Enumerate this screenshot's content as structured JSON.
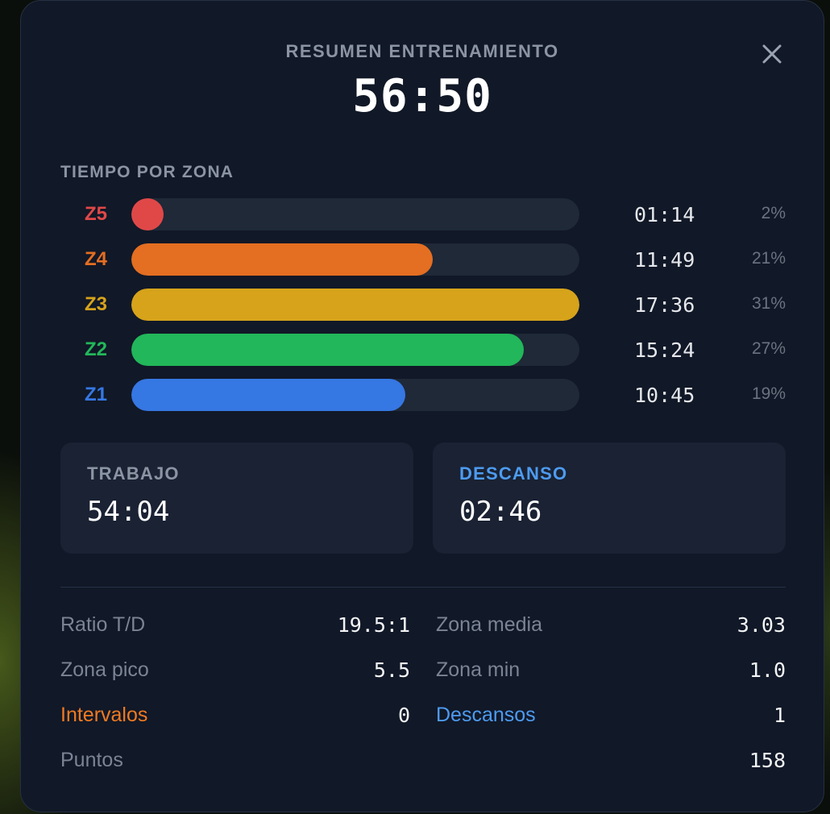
{
  "header": {
    "title": "RESUMEN ENTRENAMIENTO",
    "total_time": "56:50"
  },
  "zones": {
    "section_label": "TIEMPO POR ZONA",
    "items": [
      {
        "label": "Z5",
        "time": "01:14",
        "percent": "2%",
        "fill_fraction": 0.07,
        "color": "#e04848"
      },
      {
        "label": "Z4",
        "time": "11:49",
        "percent": "21%",
        "fill_fraction": 0.672,
        "color": "#e46e21"
      },
      {
        "label": "Z3",
        "time": "17:36",
        "percent": "31%",
        "fill_fraction": 1.0,
        "color": "#d6a31a"
      },
      {
        "label": "Z2",
        "time": "15:24",
        "percent": "27%",
        "fill_fraction": 0.875,
        "color": "#22b75a"
      },
      {
        "label": "Z1",
        "time": "10:45",
        "percent": "19%",
        "fill_fraction": 0.611,
        "color": "#3577e3"
      }
    ]
  },
  "cards": {
    "work": {
      "label": "TRABAJO",
      "value": "54:04",
      "label_color": "#8b94a3"
    },
    "rest": {
      "label": "DESCANSO",
      "value": "02:46",
      "label_color": "#4d9bf0"
    }
  },
  "metrics": {
    "ratio": {
      "label": "Ratio T/D",
      "value": "19.5:1"
    },
    "zona_media": {
      "label": "Zona media",
      "value": "3.03"
    },
    "zona_pico": {
      "label": "Zona pico",
      "value": "5.5"
    },
    "zona_min": {
      "label": "Zona min",
      "value": "1.0"
    },
    "intervalos": {
      "label": "Intervalos",
      "value": "0",
      "label_color": "#f07a22"
    },
    "descansos": {
      "label": "Descansos",
      "value": "1",
      "label_color": "#4d9bf0"
    },
    "puntos": {
      "label": "Puntos",
      "value": "158"
    }
  },
  "icons": {
    "close": "close-icon"
  }
}
